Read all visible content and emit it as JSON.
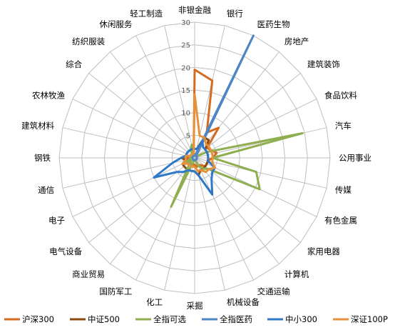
{
  "chart_data": {
    "type": "radar",
    "categories": [
      "非银金融",
      "银行",
      "医药生物",
      "房地产",
      "建筑装饰",
      "食品饮料",
      "汽车",
      "公用事业",
      "传媒",
      "有色金属",
      "家用电器",
      "计算机",
      "交通运输",
      "机械设备",
      "采掘",
      "化工",
      "国防军工",
      "商业贸易",
      "电气设备",
      "电子",
      "通信",
      "钢铁",
      "建筑材料",
      "农林牧渔",
      "综合",
      "纺织服装",
      "休闲服务",
      "轻工制造"
    ],
    "rlim": [
      0,
      30
    ],
    "r_ticks": [
      0,
      5,
      10,
      15,
      20,
      25,
      30
    ],
    "grid": true,
    "legend_position": "bottom",
    "series": [
      {
        "name": "沪深300",
        "color": "#D46B21",
        "values": [
          19.5,
          17.5,
          6.2,
          8.5,
          3.5,
          4,
          5,
          4,
          3,
          3,
          3,
          2,
          2,
          2,
          1.5,
          1.5,
          1.5,
          1.5,
          1.5,
          1.5,
          1.5,
          1.5,
          1,
          1,
          1,
          1,
          1,
          1
        ]
      },
      {
        "name": "中证500",
        "color": "#8B4A0F",
        "values": [
          2,
          2,
          5,
          5,
          3,
          3,
          3,
          3,
          3,
          3,
          3,
          3,
          3,
          4,
          3,
          3,
          3,
          3,
          3,
          3,
          2,
          3,
          2,
          2,
          2,
          2,
          2,
          2
        ]
      },
      {
        "name": "全指可选",
        "color": "#8FAE4F",
        "values": [
          0.5,
          0.5,
          0.5,
          0.5,
          0.5,
          3,
          24.5,
          4,
          14,
          16,
          4,
          3,
          2,
          0.5,
          0.5,
          0.5,
          12,
          2,
          1,
          2,
          1,
          1,
          1,
          0.5,
          0.5,
          0.5,
          2,
          3
        ]
      },
      {
        "name": "全指医药",
        "color": "#4E86C5",
        "values": [
          0.5,
          0.5,
          30,
          0.5,
          0.5,
          0.5,
          0.5,
          0.5,
          0.5,
          0.5,
          0.5,
          0.5,
          0.5,
          0.5,
          0.5,
          0.5,
          0.5,
          0.5,
          0.5,
          0.5,
          0.5,
          0.5,
          0.5,
          0.5,
          0.5,
          0.5,
          0.5,
          0.5
        ]
      },
      {
        "name": "中小300",
        "color": "#2E78C8",
        "values": [
          2,
          2,
          4,
          3,
          3,
          3,
          3,
          3,
          3,
          5,
          5,
          6,
          9,
          4,
          3,
          3,
          3,
          4,
          5,
          10,
          5,
          3,
          2,
          2,
          2,
          2,
          2,
          2
        ]
      },
      {
        "name": "深证100P",
        "color": "#E8913A",
        "values": [
          14,
          5,
          5,
          4,
          4,
          4,
          4,
          4,
          4,
          5,
          4,
          4,
          3,
          3,
          2,
          2,
          2,
          2,
          2,
          3,
          2,
          2,
          2,
          1,
          1,
          1,
          1,
          1
        ]
      }
    ]
  }
}
